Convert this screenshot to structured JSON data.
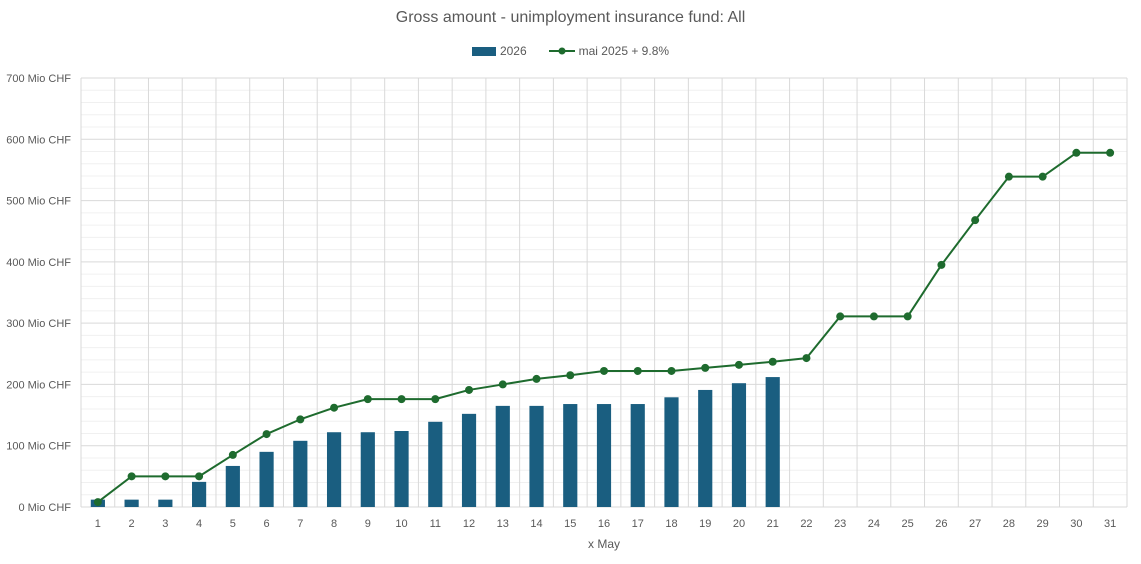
{
  "chart_data": {
    "type": "bar",
    "title": "Gross amount - unimployment insurance fund: All",
    "xlabel": "x May",
    "ylabel": "",
    "y_unit_suffix": "Mio CHF",
    "ylim": [
      0,
      700
    ],
    "y_ticks": [
      0,
      100,
      200,
      300,
      400,
      500,
      600,
      700
    ],
    "grid": true,
    "legend_position": "top-center",
    "categories": [
      "1",
      "2",
      "3",
      "4",
      "5",
      "6",
      "7",
      "8",
      "9",
      "10",
      "11",
      "12",
      "13",
      "14",
      "15",
      "16",
      "17",
      "18",
      "19",
      "20",
      "21",
      "22",
      "23",
      "24",
      "25",
      "26",
      "27",
      "28",
      "29",
      "30",
      "31"
    ],
    "series": [
      {
        "name": "2026",
        "type": "bar",
        "color": "#1a5e80",
        "values": [
          12,
          12,
          12,
          41,
          67,
          90,
          108,
          122,
          122,
          124,
          139,
          152,
          165,
          165,
          168,
          168,
          168,
          179,
          191,
          202,
          212,
          null,
          null,
          null,
          null,
          null,
          null,
          null,
          null,
          null,
          null
        ]
      },
      {
        "name": "mai 2025 + 9.8%",
        "type": "line",
        "color": "#1e6b2e",
        "values": [
          8,
          50,
          50,
          50,
          85,
          119,
          143,
          162,
          176,
          176,
          176,
          191,
          200,
          209,
          215,
          222,
          222,
          222,
          227,
          232,
          237,
          243,
          311,
          311,
          311,
          395,
          468,
          539,
          539,
          578,
          578
        ]
      }
    ]
  }
}
